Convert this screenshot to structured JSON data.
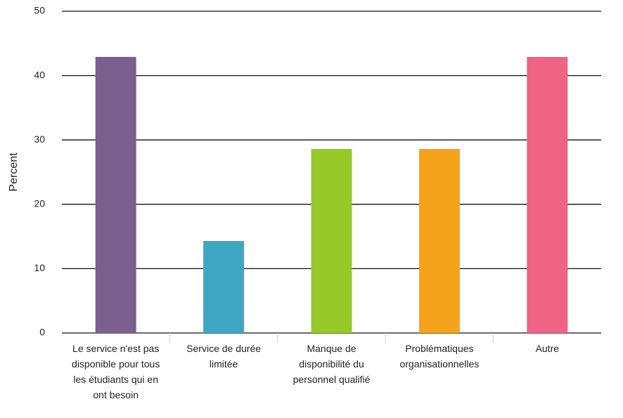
{
  "chart_data": {
    "type": "bar",
    "y_label": "Percent",
    "categories": [
      "Le service n'est pas disponible pour tous les étudiants qui en ont besoin",
      "Service de durée limitée",
      "Manque de disponibilité du personnel qualifié",
      "Problématiques organisationnelles",
      "Autre"
    ],
    "values": [
      42.9,
      14.3,
      28.6,
      28.6,
      42.9
    ],
    "colors": [
      "#7b5f8f",
      "#41a5c4",
      "#97c928",
      "#f4a31b",
      "#ef6384"
    ],
    "ylim": [
      0,
      50
    ],
    "yticks": [
      0,
      10,
      20,
      30,
      40,
      50
    ],
    "grid": true
  }
}
